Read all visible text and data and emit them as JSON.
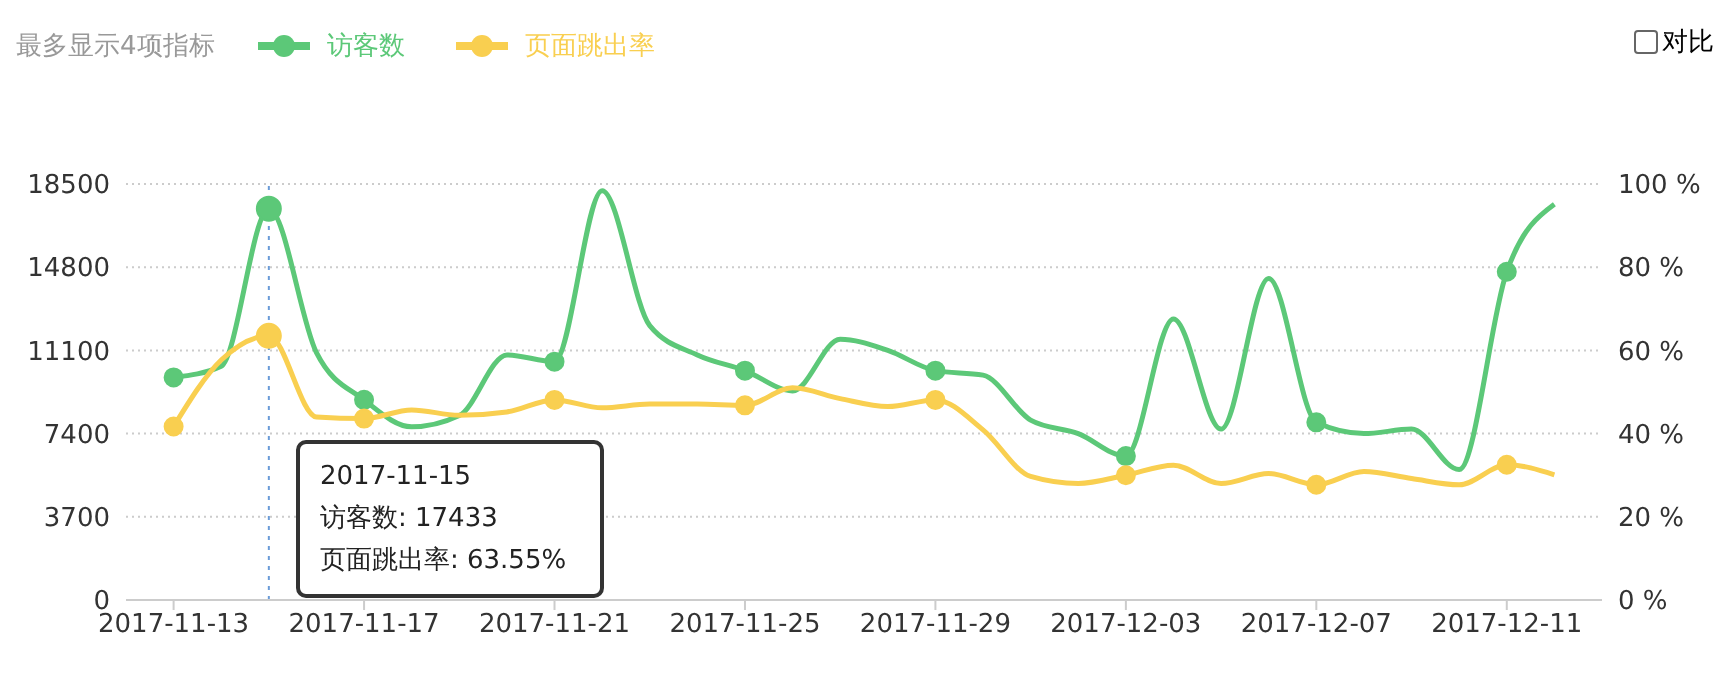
{
  "chart_data": {
    "type": "line",
    "x": [
      "2017-11-13",
      "2017-11-14",
      "2017-11-15",
      "2017-11-16",
      "2017-11-17",
      "2017-11-18",
      "2017-11-19",
      "2017-11-20",
      "2017-11-21",
      "2017-11-22",
      "2017-11-23",
      "2017-11-24",
      "2017-11-25",
      "2017-11-26",
      "2017-11-27",
      "2017-11-28",
      "2017-11-29",
      "2017-11-30",
      "2017-12-01",
      "2017-12-02",
      "2017-12-03",
      "2017-12-04",
      "2017-12-05",
      "2017-12-06",
      "2017-12-07",
      "2017-12-08",
      "2017-12-09",
      "2017-12-10",
      "2017-12-11",
      "2017-12-12"
    ],
    "series": [
      {
        "name": "访客数",
        "color": "#5cc878",
        "values": [
          9900,
          10400,
          17400,
          11000,
          8900,
          7700,
          8200,
          10900,
          10600,
          18200,
          12200,
          10900,
          10200,
          9300,
          11600,
          11100,
          10200,
          10000,
          8000,
          7400,
          6400,
          12500,
          7600,
          14300,
          7900,
          7400,
          7600,
          5800,
          14600,
          17600
        ]
      },
      {
        "name": "页面跳出率",
        "color": "#f9cf50",
        "axis": "y2",
        "values": [
          41.7,
          57.7,
          63.5,
          44,
          43.6,
          45.7,
          44.4,
          45.2,
          48.1,
          46.2,
          47.1,
          47.1,
          46.8,
          51,
          48.4,
          46.5,
          48.1,
          40.9,
          29.7,
          28,
          30,
          32.4,
          28,
          30.4,
          27.7,
          30.9,
          29.2,
          27.7,
          32.5,
          30.1
        ]
      }
    ],
    "xlim": [
      "2017-11-12",
      "2017-12-13"
    ],
    "xticks": [
      "2017-11-13",
      "2017-11-17",
      "2017-11-21",
      "2017-11-25",
      "2017-11-29",
      "2017-12-03",
      "2017-12-07",
      "2017-12-11"
    ],
    "ylim": [
      0,
      18500
    ],
    "yticks": [
      0,
      3700,
      7400,
      11100,
      14800,
      18500
    ],
    "y2lim": [
      0,
      100
    ],
    "y2ticks": [
      {
        "value": 0,
        "label": "0 %"
      },
      {
        "value": 20,
        "label": "20 %"
      },
      {
        "value": 40,
        "label": "40 %"
      },
      {
        "value": 60,
        "label": "60 %"
      },
      {
        "value": 80,
        "label": "80 %"
      },
      {
        "value": 100,
        "label": "100 %"
      }
    ],
    "grid": "y",
    "legend": "top left",
    "line_style": "solid",
    "ref_lines": [
      {
        "axis": "x",
        "value": "2017-11-15",
        "color": "#6a9bd8",
        "line_style": "dotted"
      }
    ],
    "annotations": [
      "最多显示4项指标",
      "对比",
      "2017-11-15",
      "访客数: 17433",
      "页面跳出率: 63.55%"
    ]
  }
}
